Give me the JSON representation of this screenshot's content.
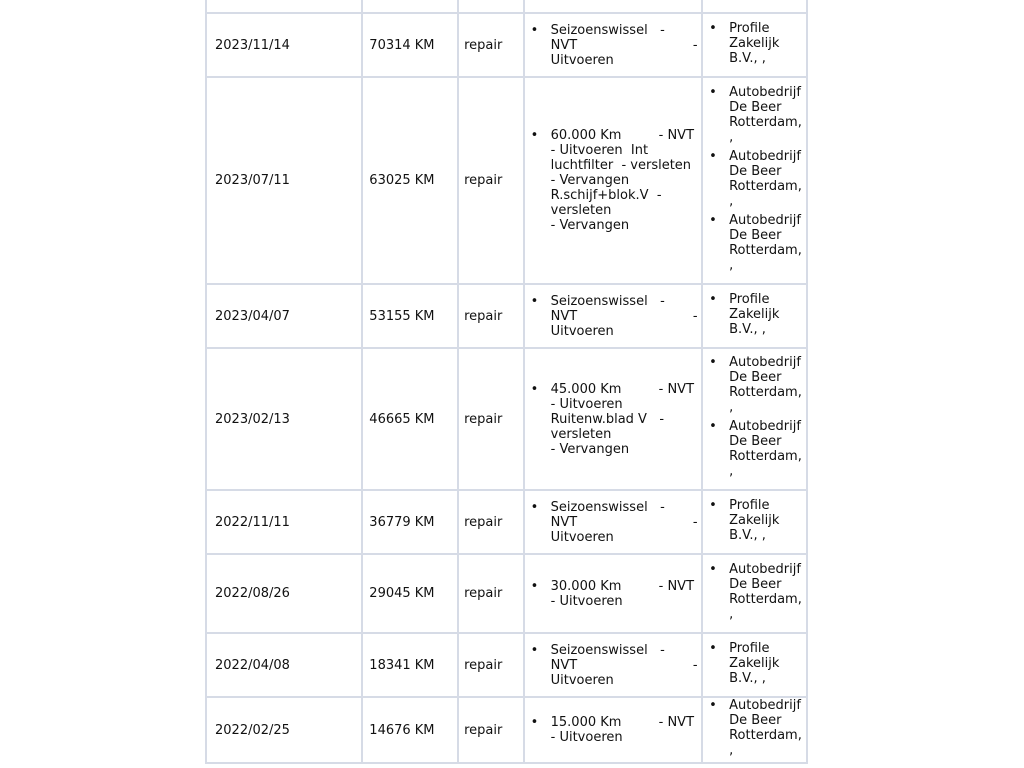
{
  "rows": [
    {
      "date": "",
      "mileage": "",
      "type": "",
      "work": [],
      "garages": []
    },
    {
      "date": "2023/11/14",
      "mileage": "70314 KM",
      "type": "repair",
      "work": [
        [
          "Seizoenswissel   -",
          "NVT                            -",
          "Uitvoeren"
        ]
      ],
      "garages": [
        [
          "Profile",
          "Zakelijk",
          "B.V., ,"
        ]
      ]
    },
    {
      "date": "2023/07/11",
      "mileage": "63025 KM",
      "type": "repair",
      "work": [
        [
          "60.000 Km         - NVT",
          "- Uitvoeren  Int",
          "luchtfilter  - versleten",
          "- Vervangen",
          "R.schijf+blok.V  -",
          "versleten",
          "- Vervangen"
        ]
      ],
      "garages": [
        [
          "Autobedrijf",
          "De Beer",
          "Rotterdam,",
          ","
        ],
        [
          "Autobedrijf",
          "De Beer",
          "Rotterdam,",
          ","
        ],
        [
          "Autobedrijf",
          "De Beer",
          "Rotterdam,",
          ","
        ]
      ]
    },
    {
      "date": "2023/04/07",
      "mileage": "53155 KM",
      "type": "repair",
      "work": [
        [
          "Seizoenswissel   -",
          "NVT                            -",
          "Uitvoeren"
        ]
      ],
      "garages": [
        [
          "Profile",
          "Zakelijk",
          "B.V., ,"
        ]
      ]
    },
    {
      "date": "2023/02/13",
      "mileage": "46665 KM",
      "type": "repair",
      "work": [
        [
          "45.000 Km         - NVT",
          "- Uitvoeren",
          "Ruitenw.blad V   -",
          "versleten",
          "- Vervangen"
        ]
      ],
      "garages": [
        [
          "Autobedrijf",
          "De Beer",
          "Rotterdam,",
          ","
        ],
        [
          "Autobedrijf",
          "De Beer",
          "Rotterdam,",
          ","
        ]
      ]
    },
    {
      "date": "2022/11/11",
      "mileage": "36779 KM",
      "type": "repair",
      "work": [
        [
          "Seizoenswissel   -",
          "NVT                            -",
          "Uitvoeren"
        ]
      ],
      "garages": [
        [
          "Profile",
          "Zakelijk",
          "B.V., ,"
        ]
      ]
    },
    {
      "date": "2022/08/26",
      "mileage": "29045 KM",
      "type": "repair",
      "work": [
        [
          "30.000 Km         - NVT",
          "- Uitvoeren"
        ]
      ],
      "garages": [
        [
          "Autobedrijf",
          "De Beer",
          "Rotterdam,",
          ","
        ]
      ]
    },
    {
      "date": "2022/04/08",
      "mileage": "18341 KM",
      "type": "repair",
      "work": [
        [
          "Seizoenswissel   -",
          "NVT                            -",
          "Uitvoeren"
        ]
      ],
      "garages": [
        [
          "Profile",
          "Zakelijk",
          "B.V., ,"
        ]
      ]
    },
    {
      "date": "2022/02/25",
      "mileage": "14676 KM",
      "type": "repair",
      "work": [
        [
          "15.000 Km         - NVT",
          "- Uitvoeren"
        ]
      ],
      "garages": [
        [
          "Autobedrijf",
          "De Beer",
          "Rotterdam,",
          ","
        ]
      ]
    }
  ]
}
